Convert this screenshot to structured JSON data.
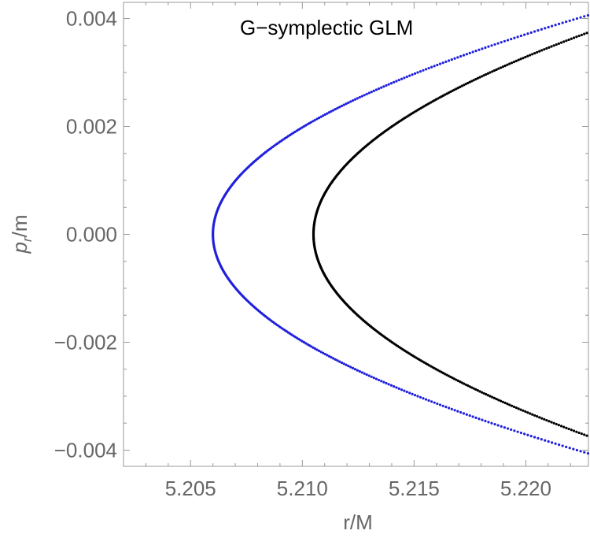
{
  "chart_data": {
    "type": "scatter",
    "title": "G−symplectic GLM",
    "xlabel": "r/M",
    "ylabel": {
      "main": "p",
      "sub": "r",
      "tail": "/m"
    },
    "xlim": [
      5.202,
      5.2228
    ],
    "ylim": [
      -0.0043,
      0.0043
    ],
    "xticks": [
      5.205,
      5.21,
      5.215,
      5.22
    ],
    "xtick_labels": [
      "5.205",
      "5.210",
      "5.215",
      "5.220"
    ],
    "yticks": [
      0.004,
      0.002,
      0.0,
      -0.002,
      -0.004
    ],
    "ytick_labels": [
      "0.004",
      "0.002",
      "0.000",
      "−0.002",
      "−0.004"
    ],
    "grid": false,
    "series": [
      {
        "color": "#1f1fdd",
        "curve": {
          "vertex_r": 5.206,
          "a": 1018,
          "p_max": 0.0042
        }
      },
      {
        "color": "#000000",
        "curve": {
          "vertex_r": 5.2105,
          "a": 878,
          "p_max": 0.00375
        }
      }
    ]
  }
}
